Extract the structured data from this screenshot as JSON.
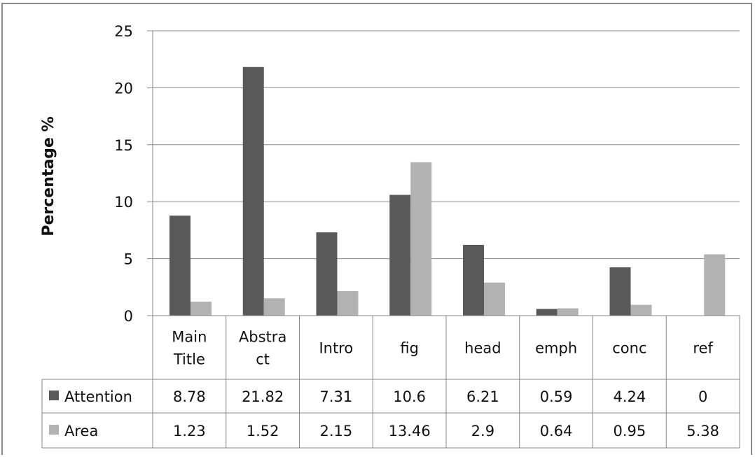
{
  "chart_data": {
    "type": "bar",
    "title": "",
    "xlabel": "",
    "ylabel": "Percentage %",
    "ylim": [
      0,
      25
    ],
    "yticks": [
      0,
      5,
      10,
      15,
      20,
      25
    ],
    "grid": true,
    "legend": "data-table",
    "categories": [
      [
        "Main",
        "Title"
      ],
      [
        "Abstra",
        "ct"
      ],
      [
        "Intro"
      ],
      [
        "fig"
      ],
      [
        "head"
      ],
      [
        "emph"
      ],
      [
        "conc"
      ],
      [
        "ref"
      ]
    ],
    "series": [
      {
        "name": "Attention",
        "color": "#595959",
        "values": [
          8.78,
          21.82,
          7.31,
          10.6,
          6.21,
          0.59,
          4.24,
          0
        ],
        "labels": [
          "8.78",
          "21.82",
          "7.31",
          "10.6",
          "6.21",
          "0.59",
          "4.24",
          "0"
        ]
      },
      {
        "name": "Area",
        "color": "#b2b2b2",
        "values": [
          1.23,
          1.52,
          2.15,
          13.46,
          2.9,
          0.64,
          0.95,
          5.38
        ],
        "labels": [
          "1.23",
          "1.52",
          "2.15",
          "13.46",
          "2.9",
          "0.64",
          "0.95",
          "5.38"
        ]
      }
    ]
  }
}
